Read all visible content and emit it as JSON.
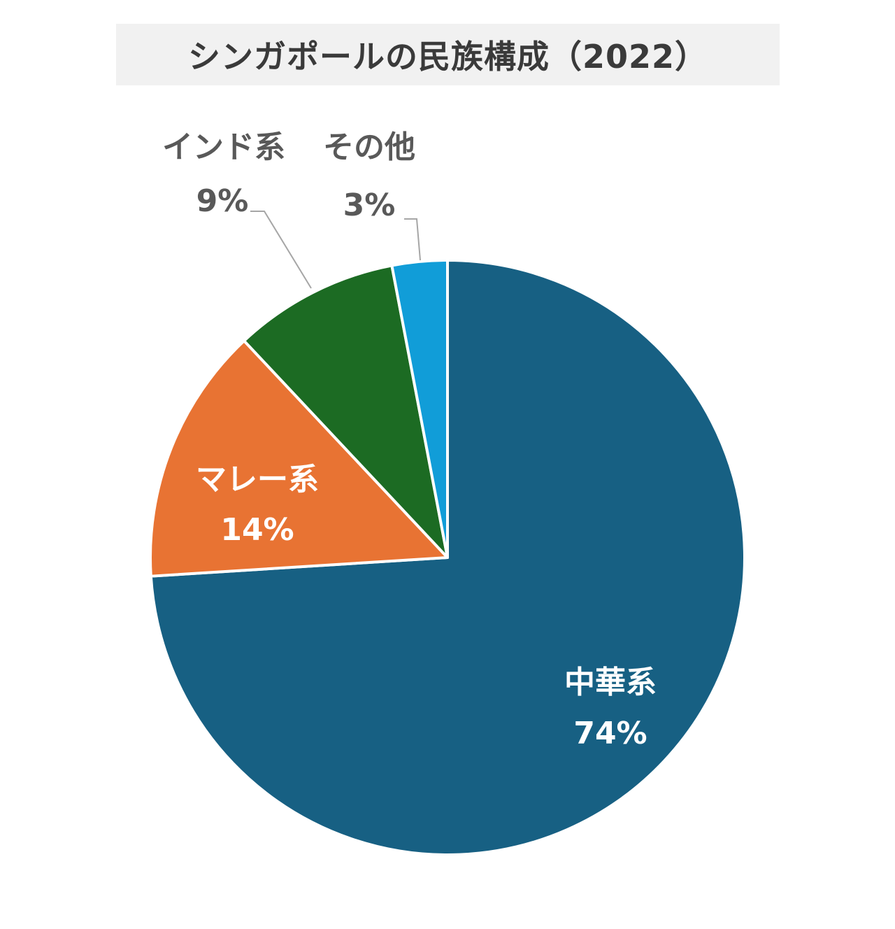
{
  "chart_data": {
    "type": "pie",
    "title": "シンガポールの民族構成（2022）",
    "slices": [
      {
        "label": "中華系",
        "value": 74,
        "value_label": "74%",
        "color": "#176083"
      },
      {
        "label": "マレー系",
        "value": 14,
        "value_label": "14%",
        "color": "#e87333"
      },
      {
        "label": "インド系",
        "value": 9,
        "value_label": "9%",
        "color": "#1c6b23"
      },
      {
        "label": "その他",
        "value": 3,
        "value_label": "3%",
        "color": "#119dd8"
      }
    ],
    "start_angle": "12 o'clock",
    "direction": "clockwise",
    "slice_border_color": "#ffffff",
    "leader_line_color": "#a6a6a6"
  }
}
